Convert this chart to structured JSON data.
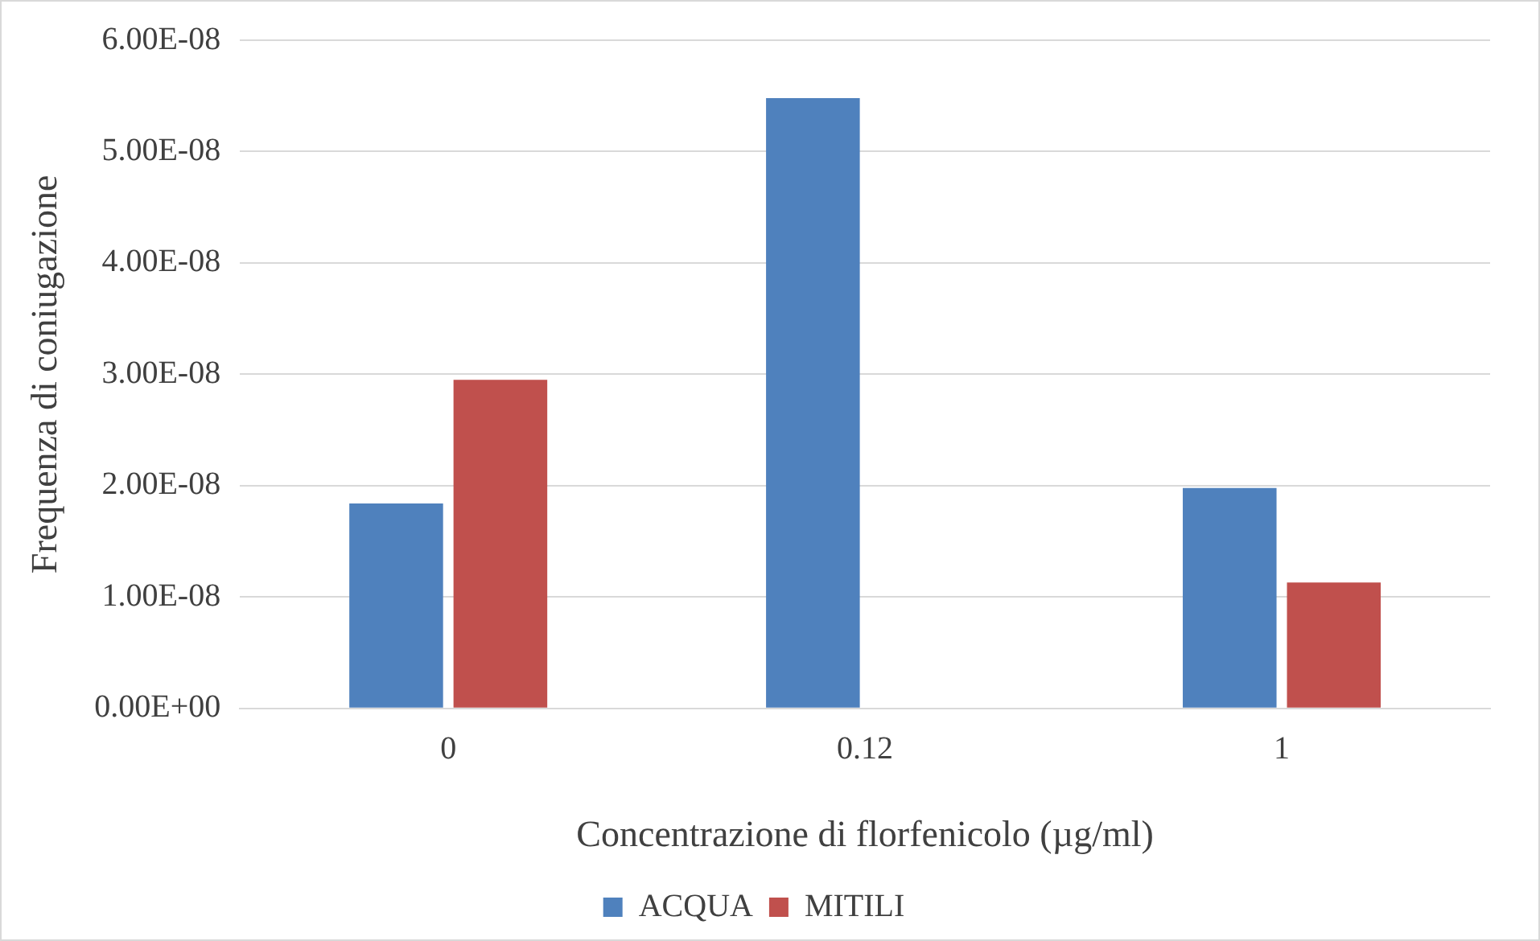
{
  "chart_data": {
    "type": "bar",
    "xlabel": "Concentrazione di florfenicolo (µg/ml)",
    "ylabel": "Frequenza di coniugazione",
    "categories": [
      "0",
      "0.12",
      "1"
    ],
    "series": [
      {
        "name": "ACQUA",
        "color": "#4f81bd",
        "values": [
          1.84e-08,
          5.48e-08,
          1.98e-08
        ]
      },
      {
        "name": "MITILI",
        "color": "#c0504d",
        "values": [
          2.95e-08,
          0,
          1.13e-08
        ]
      }
    ],
    "ylim": [
      0,
      6e-08
    ],
    "yticks": [
      {
        "value": 0,
        "label": "0.00E+00"
      },
      {
        "value": 1e-08,
        "label": "1.00E-08"
      },
      {
        "value": 2e-08,
        "label": "2.00E-08"
      },
      {
        "value": 3e-08,
        "label": "3.00E-08"
      },
      {
        "value": 4e-08,
        "label": "4.00E-08"
      },
      {
        "value": 5e-08,
        "label": "5.00E-08"
      },
      {
        "value": 6e-08,
        "label": "6.00E-08"
      }
    ],
    "grid": "y",
    "legend": "bottom"
  }
}
